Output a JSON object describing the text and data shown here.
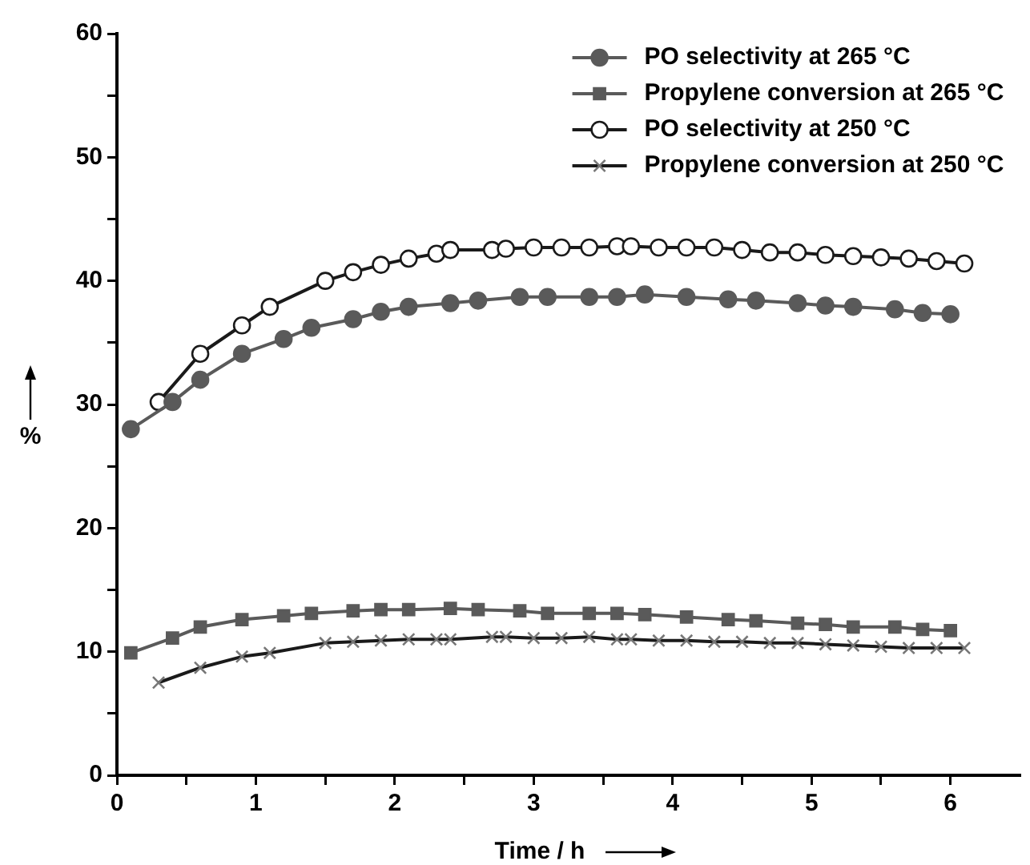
{
  "chart_data": {
    "type": "line",
    "xlabel": "Time / h",
    "ylabel": "%",
    "xlim": [
      0,
      6.5
    ],
    "ylim": [
      0,
      60
    ],
    "xticks": [
      0,
      {
        "value": 0.5,
        "label": null
      },
      1,
      {
        "value": 1.5,
        "label": null
      },
      2,
      {
        "value": 2.5,
        "label": null
      },
      3,
      {
        "value": 3.5,
        "label": null
      },
      4,
      {
        "value": 4.5,
        "label": null
      },
      5,
      {
        "value": 5.5,
        "label": null
      },
      6
    ],
    "yticks": [
      0,
      {
        "value": 5,
        "label": null
      },
      10,
      {
        "value": 15,
        "label": null
      },
      20,
      {
        "value": 25,
        "label": null
      },
      30,
      {
        "value": 35,
        "label": null
      },
      40,
      {
        "value": 45,
        "label": null
      },
      50,
      {
        "value": 55,
        "label": null
      },
      60
    ],
    "grid": false,
    "legend": "top right",
    "line_style": "solid",
    "series": [
      {
        "name": "PO selectivity at 265 °C",
        "color": "#5a5a5a",
        "marker": "circle",
        "x": [
          0.1,
          0.4,
          0.6,
          0.9,
          1.2,
          1.4,
          1.7,
          1.9,
          2.1,
          2.4,
          2.6,
          2.9,
          3.1,
          3.4,
          3.6,
          3.8,
          4.1,
          4.4,
          4.6,
          4.9,
          5.1,
          5.3,
          5.6,
          5.8,
          6.0
        ],
        "values": [
          28.0,
          30.2,
          32.0,
          34.1,
          35.3,
          36.2,
          36.9,
          37.5,
          37.9,
          38.2,
          38.4,
          38.7,
          38.7,
          38.7,
          38.7,
          38.9,
          38.7,
          38.5,
          38.4,
          38.2,
          38.0,
          37.9,
          37.7,
          37.4,
          37.3
        ]
      },
      {
        "name": "Propylene conversion at 265 °C",
        "color": "#5a5a5a",
        "marker": "square",
        "x": [
          0.1,
          0.4,
          0.6,
          0.9,
          1.2,
          1.4,
          1.7,
          1.9,
          2.1,
          2.4,
          2.6,
          2.9,
          3.1,
          3.4,
          3.6,
          3.8,
          4.1,
          4.4,
          4.6,
          4.9,
          5.1,
          5.3,
          5.6,
          5.8,
          6.0
        ],
        "values": [
          9.9,
          11.1,
          12.0,
          12.6,
          12.9,
          13.1,
          13.3,
          13.4,
          13.4,
          13.5,
          13.4,
          13.3,
          13.1,
          13.1,
          13.1,
          13.0,
          12.8,
          12.6,
          12.5,
          12.3,
          12.2,
          12.0,
          12.0,
          11.8,
          11.7
        ]
      },
      {
        "name": "PO selectivity at 250 °C",
        "color": "#1a1a1a",
        "marker": "open circle",
        "x": [
          0.3,
          0.6,
          0.9,
          1.1,
          1.5,
          1.7,
          1.9,
          2.1,
          2.3,
          2.4,
          2.7,
          2.8,
          3.0,
          3.2,
          3.4,
          3.6,
          3.7,
          3.9,
          4.1,
          4.3,
          4.5,
          4.7,
          4.9,
          5.1,
          5.3,
          5.5,
          5.7,
          5.9,
          6.1
        ],
        "values": [
          30.2,
          34.1,
          36.4,
          37.9,
          40.0,
          40.7,
          41.3,
          41.8,
          42.2,
          42.5,
          42.5,
          42.6,
          42.7,
          42.7,
          42.7,
          42.8,
          42.8,
          42.7,
          42.7,
          42.7,
          42.5,
          42.3,
          42.3,
          42.1,
          42.0,
          41.9,
          41.8,
          41.6,
          41.4
        ]
      },
      {
        "name": "Propylene conversion at 250 °C",
        "color": "#1a1a1a",
        "marker": "cross",
        "x": [
          0.3,
          0.6,
          0.9,
          1.1,
          1.5,
          1.7,
          1.9,
          2.1,
          2.3,
          2.4,
          2.7,
          2.8,
          3.0,
          3.2,
          3.4,
          3.6,
          3.7,
          3.9,
          4.1,
          4.3,
          4.5,
          4.7,
          4.9,
          5.1,
          5.3,
          5.5,
          5.7,
          5.9,
          6.1
        ],
        "values": [
          7.5,
          8.7,
          9.6,
          9.9,
          10.7,
          10.8,
          10.9,
          11.0,
          11.0,
          11.0,
          11.2,
          11.2,
          11.1,
          11.1,
          11.2,
          11.0,
          11.0,
          10.9,
          10.9,
          10.8,
          10.8,
          10.7,
          10.7,
          10.6,
          10.5,
          10.4,
          10.3,
          10.3,
          10.3
        ]
      }
    ]
  }
}
